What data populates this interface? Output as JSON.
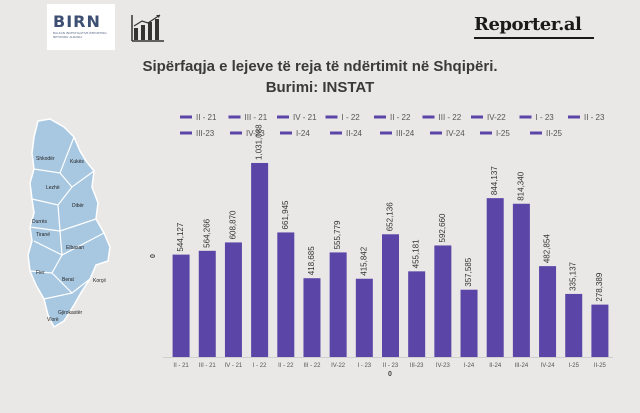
{
  "header": {
    "birn_logo_text": "BIRN",
    "birn_subtext": "BALKAN INVESTIGATIVE REPORTING NETWORK",
    "birn_country": "ALBANIA",
    "reporter_logo_text": "Reporter.al"
  },
  "map": {
    "labels": [
      "Shkodër",
      "Kukës",
      "Lezhë",
      "Dibër",
      "Durrës",
      "Tiranë",
      "Elbasan",
      "Fier",
      "Berat",
      "Korçë",
      "Gjirokastër",
      "Vlorë"
    ],
    "fill_color": "#a8c8e2",
    "stroke_color": "#ffffff"
  },
  "chart_data": {
    "type": "bar",
    "title": "Sipërfaqja e lejeve të reja të ndërtimit në Shqipëri.",
    "subtitle": "Burimi: INSTAT",
    "categories": [
      "II - 21",
      "III - 21",
      "IV - 21",
      "I - 22",
      "II - 22",
      "III - 22",
      "IV-22",
      "I - 23",
      "II - 23",
      "III-23",
      "IV-23",
      "I-24",
      "II-24",
      "III-24",
      "IV-24",
      "I-25",
      "II-25"
    ],
    "values": [
      544127,
      564266,
      608870,
      1031088,
      661945,
      418685,
      555779,
      415842,
      652136,
      455181,
      592660,
      357585,
      844137,
      814340,
      482854,
      335137,
      278389
    ],
    "value_labels": [
      "544,127",
      "564,266",
      "608,870",
      "1,031,088",
      "661,945",
      "418,685",
      "555,779",
      "415,842",
      "652,136",
      "455,181",
      "592,660",
      "357,585",
      "844,137",
      "814,340",
      "482,854",
      "335,137",
      "278,389"
    ],
    "y_axis_label": "0",
    "x_axis_label": "0",
    "ylim": [
      0,
      1100000
    ],
    "grid": false,
    "legend_position": "top",
    "bar_color": "#5b46a8",
    "text_color": "#555555"
  }
}
